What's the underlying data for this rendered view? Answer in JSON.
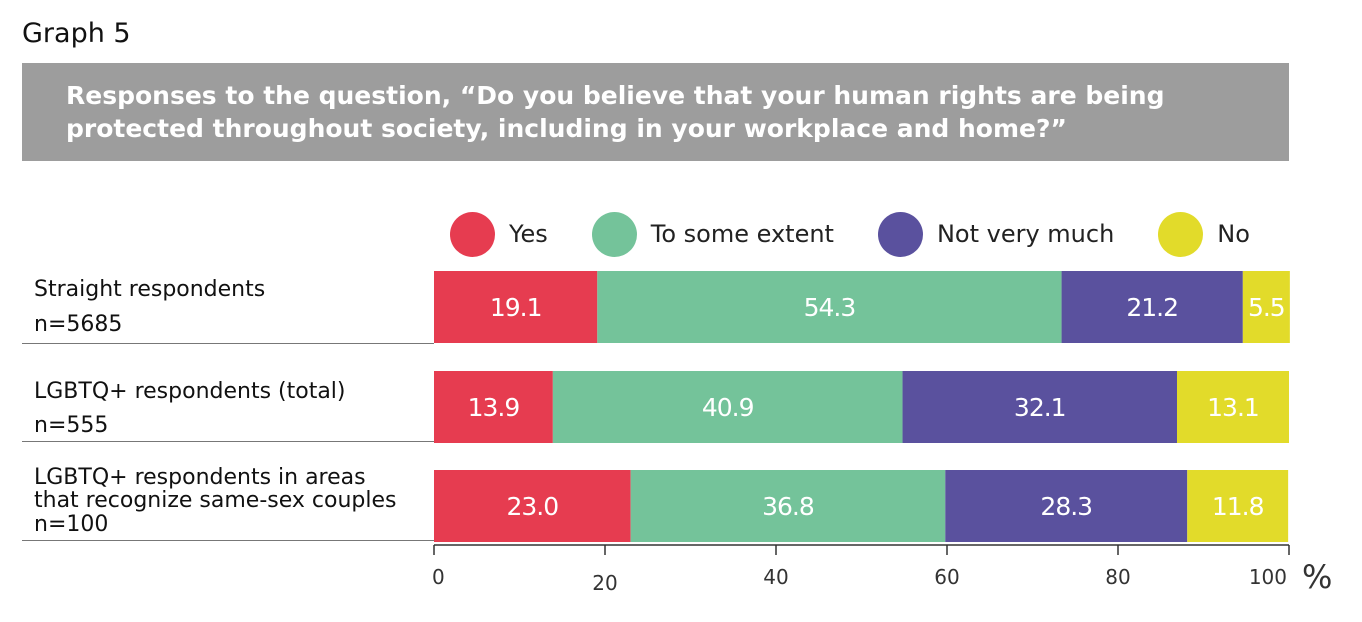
{
  "graph_label": "Graph 5",
  "title": "Responses to the question, “Do you believe that your human rights are being protected throughout society, including in your workplace and home?”",
  "axis_unit": "%",
  "rows": [
    {
      "label_lines": [
        "Straight respondents"
      ],
      "n": "n=5685"
    },
    {
      "label_lines": [
        "LGBTQ+ respondents (total)"
      ],
      "n": "n=555"
    },
    {
      "label_lines": [
        "LGBTQ+ respondents in areas",
        "that recognize same-sex couples"
      ],
      "n": "n=100"
    }
  ],
  "chart_data": {
    "type": "bar",
    "orientation": "horizontal",
    "stacked": true,
    "title": "Responses to the question, “Do you believe that your human rights are being protected throughout society, including in your workplace and home?”",
    "categories": [
      "Straight respondents n=5685",
      "LGBTQ+ respondents (total) n=555",
      "LGBTQ+ respondents in areas that recognize same-sex couples n=100"
    ],
    "series": [
      {
        "name": "Yes",
        "color": "#e63c50",
        "values": [
          19.1,
          13.9,
          23.0
        ]
      },
      {
        "name": "To some extent",
        "color": "#74c39a",
        "values": [
          54.3,
          40.9,
          36.8
        ]
      },
      {
        "name": "Not very much",
        "color": "#5a519e",
        "values": [
          21.2,
          32.1,
          28.3
        ]
      },
      {
        "name": "No",
        "color": "#e2db2a",
        "values": [
          5.5,
          13.1,
          11.8
        ]
      }
    ],
    "value_labels": [
      [
        "19.1",
        "54.3",
        "21.2",
        "5.5"
      ],
      [
        "13.9",
        "40.9",
        "32.1",
        "13.1"
      ],
      [
        "23.0",
        "36.8",
        "28.3",
        "11.8"
      ]
    ],
    "xlim": [
      0,
      100
    ],
    "xticks": [
      0,
      20,
      40,
      60,
      80,
      100
    ],
    "xlabel": "%",
    "legend": "top",
    "grid": false
  }
}
